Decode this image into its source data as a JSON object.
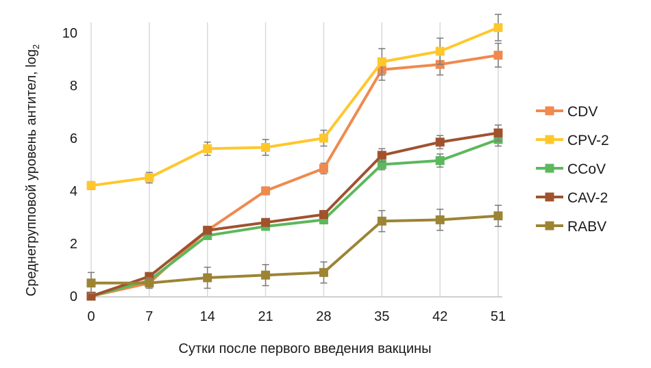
{
  "chart_data": {
    "type": "line",
    "xlabel": "Сутки после первого введения вакцины",
    "ylabel": "Среднегрупповой уровень антител, log",
    "ylabel_sub": "2",
    "x": [
      0,
      7,
      14,
      21,
      28,
      35,
      42,
      51
    ],
    "x_tick_labels": [
      "0",
      "7",
      "14",
      "21",
      "28",
      "35",
      "42",
      "51"
    ],
    "y_tick_labels": [
      "0",
      "2",
      "4",
      "6",
      "8",
      "10"
    ],
    "ylim": [
      0,
      10.5
    ],
    "grid": "vertical lines at each x",
    "legend_position": "right",
    "series": [
      {
        "name": "CDV",
        "color": "#f0894e",
        "values": [
          0,
          0.5,
          2.5,
          4.0,
          4.85,
          8.6,
          8.8,
          9.15
        ],
        "errors": [
          0,
          0.1,
          0.15,
          0.15,
          0.2,
          0.4,
          0.4,
          0.45
        ]
      },
      {
        "name": "CPV-2",
        "color": "#ffc72c",
        "values": [
          4.2,
          4.5,
          5.6,
          5.65,
          6.0,
          8.9,
          9.3,
          10.2
        ],
        "errors": [
          0.15,
          0.2,
          0.25,
          0.3,
          0.3,
          0.5,
          0.5,
          0.5
        ]
      },
      {
        "name": "CCoV",
        "color": "#5cb85c",
        "values": [
          0,
          0.6,
          2.3,
          2.65,
          2.9,
          5.0,
          5.15,
          5.95
        ],
        "errors": [
          0,
          0.1,
          0.1,
          0.1,
          0.15,
          0.2,
          0.25,
          0.25
        ]
      },
      {
        "name": "CAV-2",
        "color": "#a0522d",
        "values": [
          0,
          0.75,
          2.5,
          2.8,
          3.1,
          5.35,
          5.85,
          6.2
        ],
        "errors": [
          0,
          0.1,
          0.1,
          0.1,
          0.15,
          0.25,
          0.25,
          0.3
        ]
      },
      {
        "name": "RABV",
        "color": "#9c8434",
        "values": [
          0.5,
          0.5,
          0.7,
          0.8,
          0.9,
          2.85,
          2.9,
          3.05
        ],
        "errors": [
          0.4,
          0.2,
          0.4,
          0.4,
          0.4,
          0.4,
          0.4,
          0.4
        ]
      }
    ]
  }
}
